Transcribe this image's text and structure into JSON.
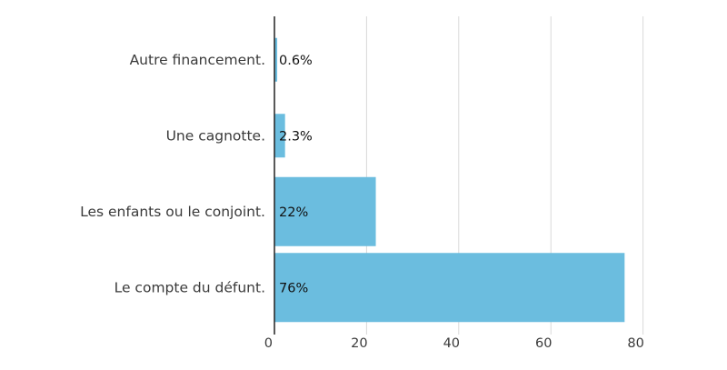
{
  "chart_data": {
    "type": "bar",
    "orientation": "horizontal",
    "categories": [
      "Autre financement.",
      "Une cagnotte.",
      "Les enfants ou le conjoint.",
      "Le compte du défunt."
    ],
    "values": [
      0.6,
      2.3,
      22,
      76
    ],
    "data_labels": [
      "0.6%",
      "2.3%",
      "22%",
      "76%"
    ],
    "xlim": [
      0,
      80
    ],
    "xticks": [
      0,
      20,
      40,
      60,
      80
    ],
    "xtick_labels": [
      "0",
      "20",
      "40",
      "60",
      "80"
    ],
    "grid": true,
    "bar_color": "#6bbddf",
    "title": "",
    "xlabel": "",
    "ylabel": ""
  }
}
